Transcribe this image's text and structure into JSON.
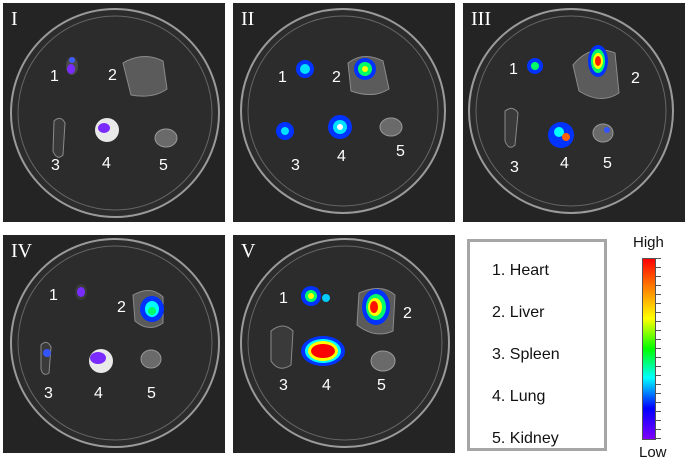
{
  "panels": [
    {
      "label": "I"
    },
    {
      "label": "II"
    },
    {
      "label": "III"
    },
    {
      "label": "IV"
    },
    {
      "label": "V"
    }
  ],
  "organ_numbers": [
    "1",
    "2",
    "3",
    "4",
    "5"
  ],
  "legend": {
    "items": [
      "1. Heart",
      "2. Liver",
      "3. Spleen",
      "4. Lung",
      "5. Kidney"
    ]
  },
  "scale": {
    "high_label": "High",
    "low_label": "Low",
    "colors": [
      "#ff0000",
      "#ff8000",
      "#ffff00",
      "#00ff00",
      "#00ffff",
      "#0000ff",
      "#8000ff"
    ]
  }
}
